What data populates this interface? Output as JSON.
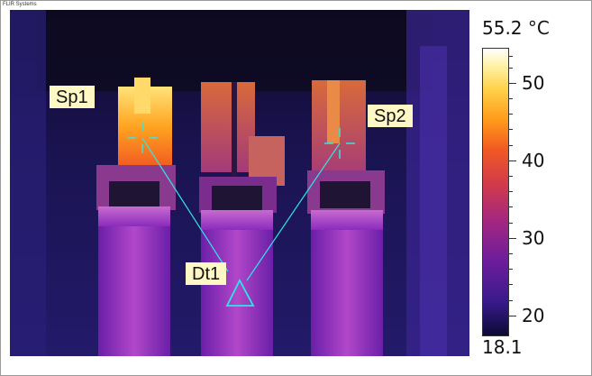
{
  "brand": "FLIR Systems",
  "image": {
    "annotations": [
      {
        "id": "sp1",
        "label": "Sp1",
        "marker": "crosshair"
      },
      {
        "id": "sp2",
        "label": "Sp2",
        "marker": "crosshair"
      },
      {
        "id": "dt1",
        "label": "Dt1",
        "marker": "triangle"
      }
    ]
  },
  "scale": {
    "max": "55.2 °C",
    "min": "18.1",
    "ticks": [
      "50",
      "40",
      "30",
      "20"
    ],
    "palette": "iron",
    "colors": {
      "hot": "#fff7c4",
      "warm": "#ff9a1a",
      "mid": "#d23b49",
      "cool": "#6d1d9c",
      "cold": "#0b0a34"
    }
  },
  "annotation_color": "#2ee6e6"
}
